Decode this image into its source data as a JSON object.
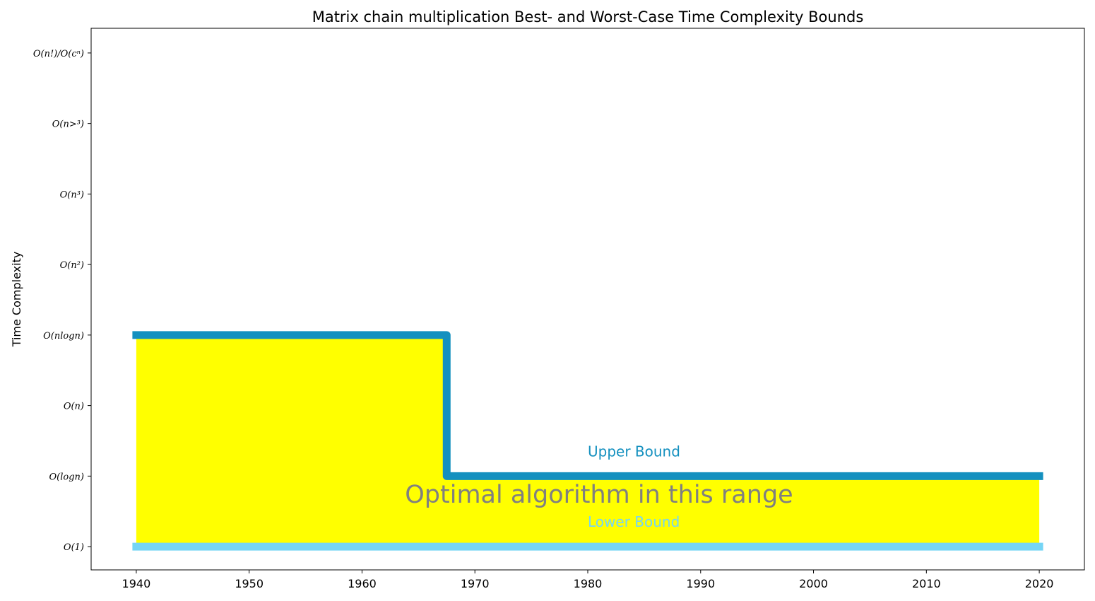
{
  "chart_data": {
    "type": "line",
    "title": "Matrix chain multiplication Best- and Worst-Case Time Complexity Bounds",
    "xlabel": "",
    "ylabel": "Time Complexity",
    "xlim": [
      1936,
      2024
    ],
    "ylim": [
      -0.33,
      7.35
    ],
    "x_ticks": [
      1940,
      1950,
      1960,
      1970,
      1980,
      1990,
      2000,
      2010,
      2020
    ],
    "y_ticks": [
      {
        "value": 0,
        "label": "O(1)"
      },
      {
        "value": 1,
        "label": "O(logn)"
      },
      {
        "value": 2,
        "label": "O(n)"
      },
      {
        "value": 3,
        "label": "O(nlogn)"
      },
      {
        "value": 4,
        "label": "O(n²)"
      },
      {
        "value": 5,
        "label": "O(n³)"
      },
      {
        "value": 6,
        "label": "O(n>³)"
      },
      {
        "value": 7,
        "label": "O(n!)/O(cⁿ)"
      }
    ],
    "series": [
      {
        "key": "upper",
        "color": "#1490bf",
        "step": true,
        "points": [
          [
            1940,
            3
          ],
          [
            1967.5,
            3
          ],
          [
            1967.5,
            1
          ],
          [
            2020,
            1
          ]
        ]
      },
      {
        "key": "lower",
        "color": "#75d5f5",
        "step": true,
        "points": [
          [
            1940,
            0
          ],
          [
            2020,
            0
          ]
        ]
      }
    ],
    "fill": {
      "color": "#ffff00",
      "between": [
        "upper",
        "lower"
      ],
      "x_range": [
        1940,
        2020
      ]
    },
    "annotations": [
      {
        "key": "upper_label",
        "text": "Upper Bound",
        "x": 1980,
        "y": 1.28,
        "color": "#1490bf"
      },
      {
        "key": "lower_label",
        "text": "Lower Bound",
        "x": 1980,
        "y": 0.28,
        "color": "#75d5f5"
      },
      {
        "key": "optimal_label",
        "text": "Optimal algorithm in this range",
        "x": 1981,
        "y": 0.62,
        "color": "#808080"
      }
    ],
    "grid": false,
    "legend": "none"
  }
}
